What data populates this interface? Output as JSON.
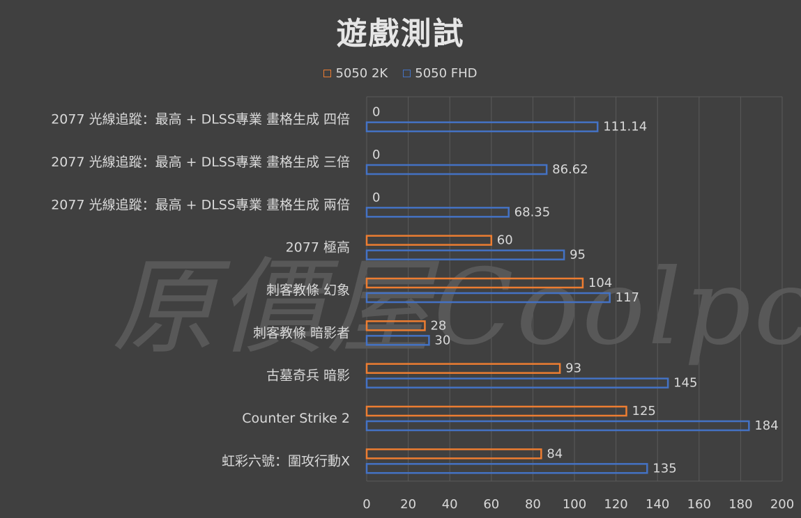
{
  "title": "遊戲測試",
  "watermark": "原價屋Coolpc",
  "colors": {
    "background": "#404040",
    "series_2k": "#ed7d31",
    "series_fhd": "#4472c4",
    "grid": "#5a5a5a",
    "text": "#d9d9d9"
  },
  "chart_data": {
    "type": "bar",
    "orientation": "horizontal",
    "title": "遊戲測試",
    "categories": [
      "2077 光線追蹤：最高 + DLSS專業 畫格生成 四倍",
      "2077 光線追蹤：最高 + DLSS專業 畫格生成 三倍",
      "2077 光線追蹤：最高 + DLSS專業 畫格生成 兩倍",
      "2077 極高",
      "刺客教條 幻象",
      "刺客教條 暗影者",
      "古墓奇兵 暗影",
      "Counter Strike 2",
      "虹彩六號：圍攻行動X"
    ],
    "series": [
      {
        "name": "5050 2K",
        "color": "#ed7d31",
        "values": [
          0,
          0,
          0,
          60,
          104,
          28,
          93,
          125,
          84
        ],
        "labels": [
          "0",
          "0",
          "0",
          "60",
          "104",
          "28",
          "93",
          "125",
          "84"
        ]
      },
      {
        "name": "5050 FHD",
        "color": "#4472c4",
        "values": [
          111.14,
          86.62,
          68.35,
          95,
          117,
          30,
          145,
          184,
          135
        ],
        "labels": [
          "111.14",
          "86.62",
          "68.35",
          "95",
          "117",
          "30",
          "145",
          "184",
          "135"
        ]
      }
    ],
    "xlim": [
      0,
      200
    ],
    "xticks": [
      "0",
      "20",
      "40",
      "60",
      "80",
      "100",
      "120",
      "140",
      "160",
      "180",
      "200"
    ],
    "grid": true,
    "legend": "top-center"
  }
}
